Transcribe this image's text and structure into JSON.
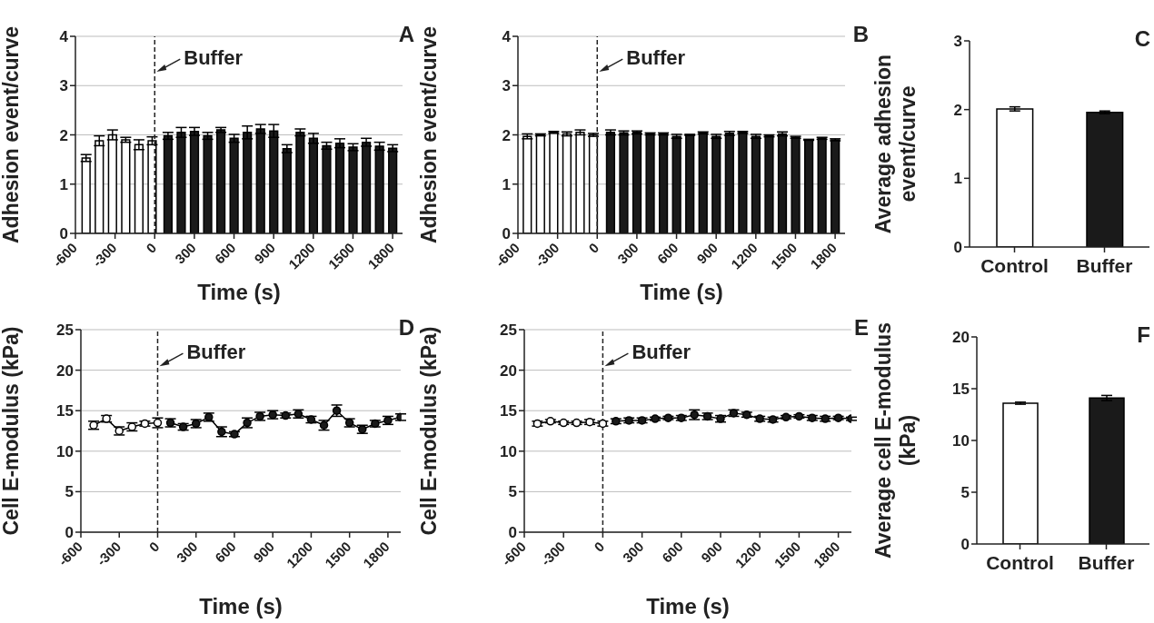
{
  "chart_data": [
    {
      "type": "bar",
      "title": "A",
      "xlabel": "Time (s)",
      "ylabel": "Adhesion event/curve",
      "xlim": [
        -600,
        1875
      ],
      "xticks": [
        -600,
        -300,
        0,
        300,
        600,
        900,
        1200,
        1500,
        1800
      ],
      "ylim": [
        0,
        4
      ],
      "yticks": [
        0,
        1,
        2,
        3,
        4
      ],
      "grid": "y",
      "ref_lines": [
        {
          "axis": "x",
          "value": 0,
          "line_style": "dashed",
          "label": "Buffer"
        }
      ],
      "series": [
        {
          "color": "#ffffff",
          "x": [
            -520,
            -420,
            -320,
            -220,
            -120,
            -20
          ],
          "values": [
            1.53,
            1.88,
            2.0,
            1.9,
            1.8,
            1.88
          ],
          "errors": [
            0.07,
            0.1,
            0.1,
            0.05,
            0.1,
            0.08
          ]
        },
        {
          "color": "#1a1a1a",
          "x": [
            100,
            200,
            300,
            400,
            500,
            600,
            700,
            800,
            900,
            1000,
            1100,
            1200,
            1300,
            1400,
            1500,
            1600,
            1700,
            1800
          ],
          "values": [
            1.98,
            2.05,
            2.07,
            1.98,
            2.1,
            1.93,
            2.05,
            2.12,
            2.08,
            1.72,
            2.05,
            1.93,
            1.78,
            1.83,
            1.75,
            1.85,
            1.77,
            1.73
          ],
          "errors": [
            0.07,
            0.1,
            0.08,
            0.07,
            0.05,
            0.08,
            0.13,
            0.09,
            0.13,
            0.08,
            0.07,
            0.1,
            0.07,
            0.09,
            0.07,
            0.08,
            0.08,
            0.07
          ]
        }
      ]
    },
    {
      "type": "bar",
      "title": "B",
      "xlabel": "Time (s)",
      "ylabel": "Adhesion event/curve",
      "xlim": [
        -600,
        1875
      ],
      "xticks": [
        -600,
        -300,
        0,
        300,
        600,
        900,
        1200,
        1500,
        1800
      ],
      "ylim": [
        0,
        4
      ],
      "yticks": [
        0,
        1,
        2,
        3,
        4
      ],
      "grid": "y",
      "ref_lines": [
        {
          "axis": "x",
          "value": 0,
          "line_style": "dashed",
          "label": "Buffer"
        }
      ],
      "series": [
        {
          "color": "#ffffff",
          "x": [
            -530,
            -430,
            -330,
            -230,
            -130,
            -30
          ],
          "values": [
            1.97,
            2.0,
            2.05,
            2.02,
            2.05,
            2.0
          ],
          "errors": [
            0.05,
            0.02,
            0.02,
            0.04,
            0.05,
            0.03
          ]
        },
        {
          "color": "#1a1a1a",
          "x": [
            100,
            200,
            300,
            400,
            500,
            600,
            700,
            800,
            900,
            1000,
            1100,
            1200,
            1300,
            1400,
            1500,
            1600,
            1700,
            1800
          ],
          "values": [
            2.05,
            2.04,
            2.05,
            2.02,
            2.02,
            1.97,
            2.0,
            2.04,
            1.97,
            2.03,
            2.05,
            1.97,
            1.98,
            2.02,
            1.95,
            1.9,
            1.93,
            1.9
          ],
          "errors": [
            0.05,
            0.04,
            0.03,
            0.02,
            0.02,
            0.04,
            0.01,
            0.02,
            0.04,
            0.04,
            0.02,
            0.04,
            0.02,
            0.04,
            0.02,
            0.01,
            0.02,
            0.02
          ]
        }
      ]
    },
    {
      "type": "bar",
      "title": "C",
      "ylabel": "Average adhesion event/curve",
      "categories": [
        "Control",
        "Buffer"
      ],
      "values": [
        2.01,
        1.96
      ],
      "errors": [
        0.03,
        0.02
      ],
      "colors": [
        "#ffffff",
        "#1a1a1a"
      ],
      "ylim": [
        0,
        3
      ],
      "yticks": [
        0,
        1,
        2,
        3
      ]
    },
    {
      "type": "line",
      "title": "D",
      "xlabel": "Time (s)",
      "ylabel": "Cell E-modulus (kPa)",
      "xlim": [
        -600,
        1900
      ],
      "xticks": [
        -600,
        -300,
        0,
        300,
        600,
        900,
        1200,
        1500,
        1800
      ],
      "ylim": [
        0,
        25
      ],
      "yticks": [
        0,
        5,
        10,
        15,
        20,
        25
      ],
      "grid": "y",
      "marker": "circle",
      "ref_lines": [
        {
          "axis": "x",
          "value": 0,
          "line_style": "dashed",
          "label": "Buffer"
        }
      ],
      "series": [
        {
          "color": "#ffffff",
          "x": [
            -500,
            -400,
            -300,
            -200,
            -100,
            0
          ],
          "values": [
            13.2,
            14.0,
            12.5,
            13.0,
            13.4,
            13.5
          ],
          "errors": [
            0.5,
            0.4,
            0.5,
            0.5,
            0.3,
            0.6
          ]
        },
        {
          "color": "#1a1a1a",
          "x": [
            100,
            200,
            300,
            400,
            500,
            600,
            700,
            800,
            900,
            1000,
            1100,
            1200,
            1300,
            1400,
            1500,
            1600,
            1700,
            1800,
            1900
          ],
          "values": [
            13.5,
            13.0,
            13.4,
            14.2,
            12.4,
            12.1,
            13.5,
            14.3,
            14.5,
            14.4,
            14.6,
            13.9,
            13.2,
            15.0,
            13.5,
            12.7,
            13.4,
            13.8,
            14.2
          ],
          "errors": [
            0.5,
            0.4,
            0.5,
            0.5,
            0.6,
            0.3,
            0.6,
            0.5,
            0.5,
            0.3,
            0.5,
            0.4,
            0.6,
            0.7,
            0.5,
            0.5,
            0.4,
            0.5,
            0.4
          ]
        }
      ]
    },
    {
      "type": "line",
      "title": "E",
      "xlabel": "Time (s)",
      "ylabel": "Cell E-modulus (kPa)",
      "xlim": [
        -600,
        1900
      ],
      "xticks": [
        -600,
        -300,
        0,
        300,
        600,
        900,
        1200,
        1500,
        1800
      ],
      "ylim": [
        0,
        25
      ],
      "yticks": [
        0,
        5,
        10,
        15,
        20,
        25
      ],
      "grid": "y",
      "marker": "circle",
      "ref_lines": [
        {
          "axis": "x",
          "value": 0,
          "line_style": "dashed",
          "label": "Buffer"
        }
      ],
      "series": [
        {
          "color": "#ffffff",
          "x": [
            -500,
            -400,
            -300,
            -200,
            -100,
            0
          ],
          "values": [
            13.4,
            13.7,
            13.5,
            13.5,
            13.6,
            13.4
          ],
          "errors": [
            0.3,
            0.2,
            0.2,
            0.2,
            0.3,
            0.3
          ]
        },
        {
          "color": "#1a1a1a",
          "x": [
            100,
            200,
            300,
            400,
            500,
            600,
            700,
            800,
            900,
            1000,
            1100,
            1200,
            1300,
            1400,
            1500,
            1600,
            1700,
            1800,
            1900
          ],
          "values": [
            13.7,
            13.8,
            13.8,
            14.0,
            14.1,
            14.1,
            14.5,
            14.3,
            14.0,
            14.7,
            14.5,
            14.0,
            13.9,
            14.2,
            14.3,
            14.1,
            14.0,
            14.1,
            14.0
          ],
          "errors": [
            0.3,
            0.3,
            0.3,
            0.2,
            0.2,
            0.3,
            0.6,
            0.4,
            0.4,
            0.4,
            0.3,
            0.3,
            0.3,
            0.2,
            0.2,
            0.3,
            0.3,
            0.2,
            0.2
          ]
        }
      ]
    },
    {
      "type": "bar",
      "title": "F",
      "ylabel": "Average cell E-modulus (kPa)",
      "categories": [
        "Control",
        "Buffer"
      ],
      "values": [
        13.6,
        14.1
      ],
      "errors": [
        0.1,
        0.25
      ],
      "colors": [
        "#ffffff",
        "#1a1a1a"
      ],
      "ylim": [
        0,
        20
      ],
      "yticks": [
        0,
        5,
        10,
        15,
        20
      ]
    }
  ]
}
